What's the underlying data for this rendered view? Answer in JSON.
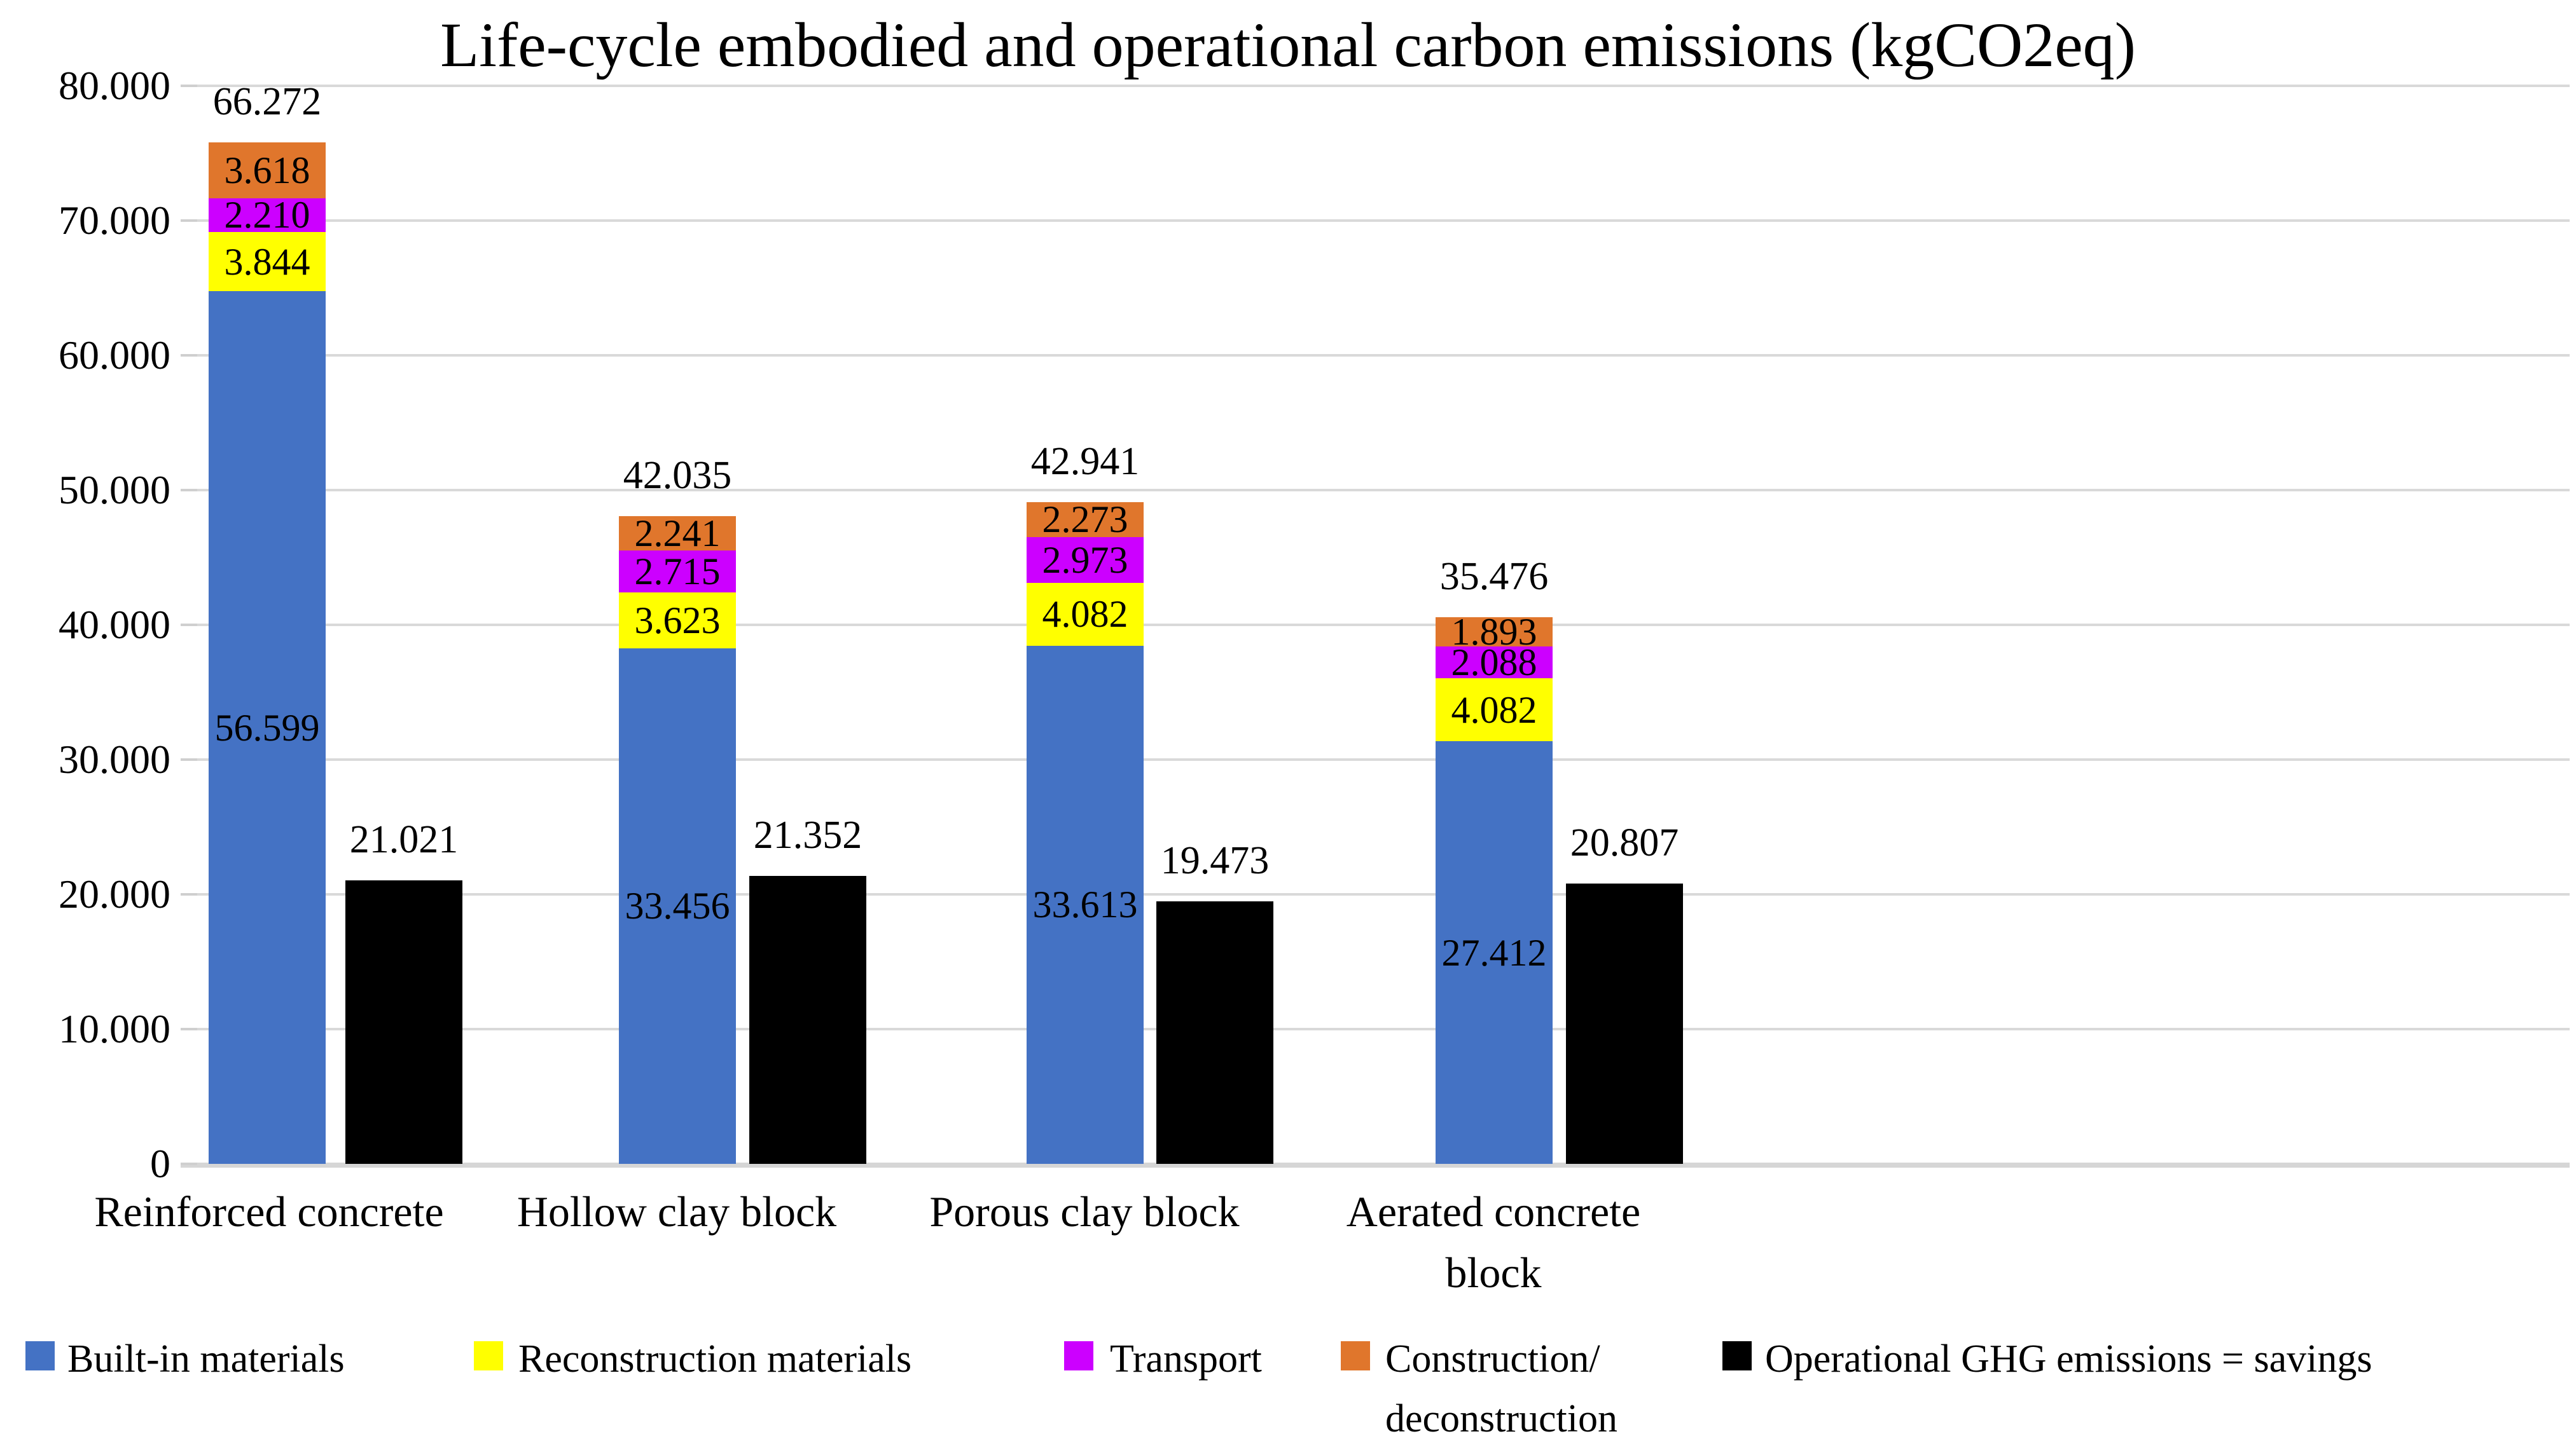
{
  "title": "Life-cycle embodied and operational carbon emissions (kgCO2eq)",
  "chart_data": {
    "type": "bar",
    "subtype": "stacked bars with adjacent single-series bars",
    "title": "Life-cycle embodied and operational carbon emissions (kgCO2eq)",
    "categories": [
      "Reinforced concrete",
      "Hollow clay block",
      "Porous clay block",
      "Aerated concrete\nblock"
    ],
    "stacked_series": [
      {
        "name": "Built-in materials",
        "color": "#4472C4",
        "values": [
          56599,
          33456,
          33613,
          27412
        ],
        "labels": [
          "56.599",
          "33.456",
          "33.613",
          "27.412"
        ]
      },
      {
        "name": "Reconstruction materials",
        "color": "#FFFF00",
        "values": [
          3844,
          3623,
          4082,
          4082
        ],
        "labels": [
          "3.844",
          "3.623",
          "4.082",
          "4.082"
        ]
      },
      {
        "name": "Transport",
        "color": "#CC00FF",
        "values": [
          2210,
          2715,
          2973,
          2088
        ],
        "labels": [
          "2.210",
          "2.715",
          "2.973",
          "2.088"
        ]
      },
      {
        "name": "Construction/deconstruction",
        "color": "#E0762C",
        "values": [
          3618,
          2241,
          2273,
          1893
        ],
        "labels": [
          "3.618",
          "2.241",
          "2.273",
          "1.893"
        ]
      }
    ],
    "bar_series": {
      "name": "Operational GHG emissions = savings",
      "color": "#000000",
      "values": [
        21021,
        21352,
        19473,
        20807
      ],
      "labels": [
        "21.021",
        "21.352",
        "19.473",
        "20.807"
      ]
    },
    "totals": {
      "values": [
        66272,
        42035,
        42941,
        35476
      ],
      "labels": [
        "66.272",
        "42.035",
        "42.941",
        "35.476"
      ]
    },
    "y_axis": {
      "min": 0,
      "max": 80000,
      "tick_step": 10000,
      "grid": true,
      "tick_labels": [
        "80.000",
        "70.000",
        "60.000",
        "50.000",
        "40.000",
        "30.000",
        "20.000",
        "10.000",
        "0"
      ]
    },
    "legend_position": "bottom",
    "legend": [
      {
        "label": "Built-in materials",
        "color": "#4472C4"
      },
      {
        "label": "Reconstruction materials",
        "color": "#FFFF00"
      },
      {
        "label": "Transport",
        "color": "#CC00FF"
      },
      {
        "label": "Construction/\ndeconstruction",
        "color": "#E0762C"
      },
      {
        "label": "Operational GHG emissions = savings",
        "color": "#000000"
      }
    ]
  }
}
